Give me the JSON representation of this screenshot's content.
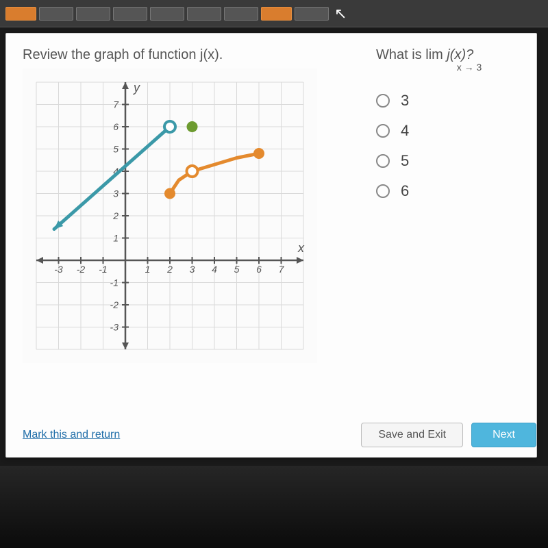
{
  "toolbar": {
    "items": [
      {
        "type": "orange"
      },
      {
        "type": "normal"
      },
      {
        "type": "normal"
      },
      {
        "type": "normal"
      },
      {
        "type": "normal"
      },
      {
        "type": "normal"
      },
      {
        "type": "normal"
      },
      {
        "type": "orange"
      },
      {
        "type": "normal"
      }
    ]
  },
  "prompt_text": "Review the graph of function j(x).",
  "question": {
    "prefix": "What is ",
    "lim": "lim",
    "fn": " j(x)?",
    "sub": "x → 3"
  },
  "options": [
    {
      "label": "3"
    },
    {
      "label": "4"
    },
    {
      "label": "5"
    },
    {
      "label": "6"
    }
  ],
  "buttons": {
    "mark": "Mark this and return",
    "save": "Save and Exit",
    "next": "Next"
  },
  "chart": {
    "type": "piecewise-line",
    "xlim": [
      -4,
      8
    ],
    "ylim": [
      -4,
      8
    ],
    "xticks": [
      -3,
      -2,
      -1,
      1,
      2,
      3,
      4,
      5,
      6,
      7
    ],
    "yticks": [
      -3,
      -2,
      -1,
      1,
      2,
      3,
      4,
      5,
      6,
      7
    ],
    "x_axis_label": "x",
    "y_axis_label": "y",
    "grid_color": "#d9d9d9",
    "axis_color": "#555555",
    "tick_font_size": 14,
    "label_font_size": 18,
    "background_color": "#fbfbfb",
    "series": [
      {
        "name": "teal-line",
        "color": "#3b99a8",
        "stroke_width": 5,
        "points": [
          [
            -3.2,
            1.4
          ],
          [
            2,
            6
          ]
        ],
        "start_marker": "arrow",
        "end_marker": "open-circle"
      },
      {
        "name": "green-point",
        "color": "#6d9b30",
        "type": "point",
        "point": [
          3,
          6
        ],
        "marker": "filled-circle"
      },
      {
        "name": "orange-curve",
        "color": "#e48a2e",
        "stroke_width": 5,
        "points": [
          [
            2,
            3
          ],
          [
            2.4,
            3.6
          ],
          [
            3,
            4
          ],
          [
            4,
            4.3
          ],
          [
            5,
            4.6
          ],
          [
            6,
            4.8
          ]
        ],
        "start_marker": "filled-circle",
        "mid_open_circle_at": [
          3,
          4
        ],
        "end_marker": "filled-circle"
      }
    ],
    "marker_radius": 8,
    "marker_stroke": 4
  }
}
